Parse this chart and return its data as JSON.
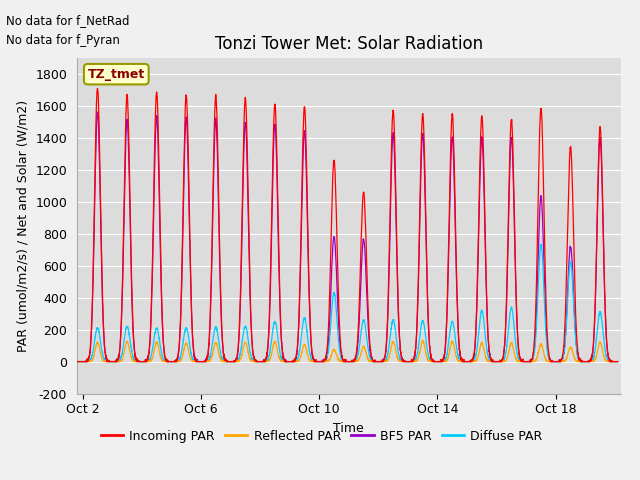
{
  "title": "Tonzi Tower Met: Solar Radiation",
  "ylabel": "PAR (umol/m2/s) / Net and Solar (W/m2)",
  "xlabel": "Time",
  "annotation_lines": [
    "No data for f_NetRad",
    "No data for f_Pyran"
  ],
  "legend_label": "TZ_tmet",
  "legend_entries": [
    "Incoming PAR",
    "Reflected PAR",
    "BF5 PAR",
    "Diffuse PAR"
  ],
  "legend_colors": [
    "#ff0000",
    "#ffa500",
    "#9900cc",
    "#00ccff"
  ],
  "ylim": [
    -200,
    1900
  ],
  "yticks": [
    -200,
    0,
    200,
    400,
    600,
    800,
    1000,
    1200,
    1400,
    1600,
    1800
  ],
  "xtick_labels": [
    "Oct 2",
    "Oct 6",
    "Oct 10",
    "Oct 14",
    "Oct 18"
  ],
  "xtick_positions": [
    2,
    6,
    10,
    14,
    18
  ],
  "fig_bg_color": "#f0f0f0",
  "plot_bg_color": "#dcdcdc",
  "grid_color": "#ffffff",
  "title_fontsize": 12,
  "axis_label_fontsize": 9,
  "tick_fontsize": 9,
  "days": [
    2,
    3,
    4,
    5,
    6,
    7,
    8,
    9,
    10,
    11,
    12,
    13,
    14,
    15,
    16,
    17,
    18,
    19
  ],
  "incoming_peaks": [
    1710,
    1660,
    1685,
    1665,
    1660,
    1645,
    1610,
    1595,
    1260,
    1060,
    1570,
    1550,
    1545,
    1535,
    1515,
    1585,
    1340,
    1465
  ],
  "bf5_peaks": [
    1560,
    1510,
    1535,
    1525,
    1515,
    1495,
    1485,
    1440,
    780,
    760,
    1430,
    1425,
    1405,
    1400,
    1395,
    1030,
    720,
    1395
  ],
  "diffuse_peaks": [
    210,
    220,
    210,
    210,
    215,
    220,
    250,
    270,
    430,
    260,
    260,
    255,
    250,
    320,
    335,
    730,
    625,
    310
  ],
  "reflected_peaks": [
    120,
    125,
    120,
    115,
    120,
    120,
    125,
    105,
    75,
    95,
    125,
    130,
    125,
    115,
    115,
    108,
    90,
    120
  ],
  "inc_hw": 0.1,
  "bf5_hw": 0.1,
  "diff_hw": 0.1,
  "ref_hw": 0.08
}
